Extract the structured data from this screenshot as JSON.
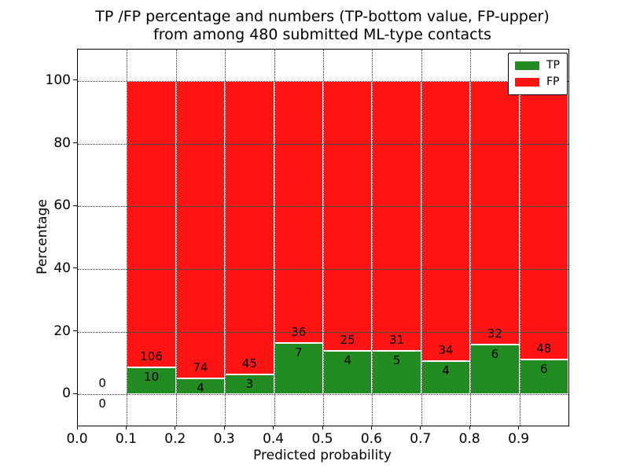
{
  "chart_data": {
    "type": "bar",
    "stacked": true,
    "normalized_to_percent": 100,
    "title_line1": "TP /FP percentage and numbers (TP-bottom value, FP-upper)",
    "title_line2": "from among 480 submitted ML-type contacts",
    "total_contacts": 480,
    "xlabel": "Predicted probability",
    "ylabel": "Percentage",
    "xlim": [
      0.0,
      1.0
    ],
    "ylim": [
      -10,
      110
    ],
    "x_ticks": [
      "0.0",
      "0.1",
      "0.2",
      "0.3",
      "0.4",
      "0.5",
      "0.6",
      "0.7",
      "0.8",
      "0.9"
    ],
    "y_ticks": [
      "0",
      "20",
      "40",
      "60",
      "80",
      "100"
    ],
    "grid": "dotted, drawn above bars",
    "legend": {
      "position": "upper right",
      "entries": [
        {
          "label": "TP",
          "color": "#228b22"
        },
        {
          "label": "FP",
          "color": "#ff1414"
        }
      ]
    },
    "series": [
      {
        "name": "TP",
        "color": "#228b22",
        "counts": [
          0,
          10,
          4,
          3,
          7,
          4,
          5,
          4,
          6,
          6
        ]
      },
      {
        "name": "FP",
        "color": "#ff1414",
        "counts": [
          0,
          106,
          74,
          45,
          36,
          25,
          31,
          34,
          32,
          48
        ]
      }
    ],
    "bins": [
      {
        "range": [
          0.0,
          0.1
        ],
        "tp": 0,
        "fp": 0,
        "tp_pct": 0,
        "has_bar": false
      },
      {
        "range": [
          0.1,
          0.2
        ],
        "tp": 10,
        "fp": 106,
        "tp_pct": 8.62,
        "has_bar": true
      },
      {
        "range": [
          0.2,
          0.3
        ],
        "tp": 4,
        "fp": 74,
        "tp_pct": 5.13,
        "has_bar": true
      },
      {
        "range": [
          0.3,
          0.4
        ],
        "tp": 3,
        "fp": 45,
        "tp_pct": 6.25,
        "has_bar": true
      },
      {
        "range": [
          0.4,
          0.5
        ],
        "tp": 7,
        "fp": 36,
        "tp_pct": 16.28,
        "has_bar": true
      },
      {
        "range": [
          0.5,
          0.6
        ],
        "tp": 4,
        "fp": 25,
        "tp_pct": 13.79,
        "has_bar": true
      },
      {
        "range": [
          0.6,
          0.7
        ],
        "tp": 5,
        "fp": 31,
        "tp_pct": 13.89,
        "has_bar": true
      },
      {
        "range": [
          0.7,
          0.8
        ],
        "tp": 4,
        "fp": 34,
        "tp_pct": 10.53,
        "has_bar": true
      },
      {
        "range": [
          0.8,
          0.9
        ],
        "tp": 6,
        "fp": 32,
        "tp_pct": 15.79,
        "has_bar": true
      },
      {
        "range": [
          0.9,
          1.0
        ],
        "tp": 6,
        "fp": 48,
        "tp_pct": 11.11,
        "has_bar": true
      }
    ]
  }
}
